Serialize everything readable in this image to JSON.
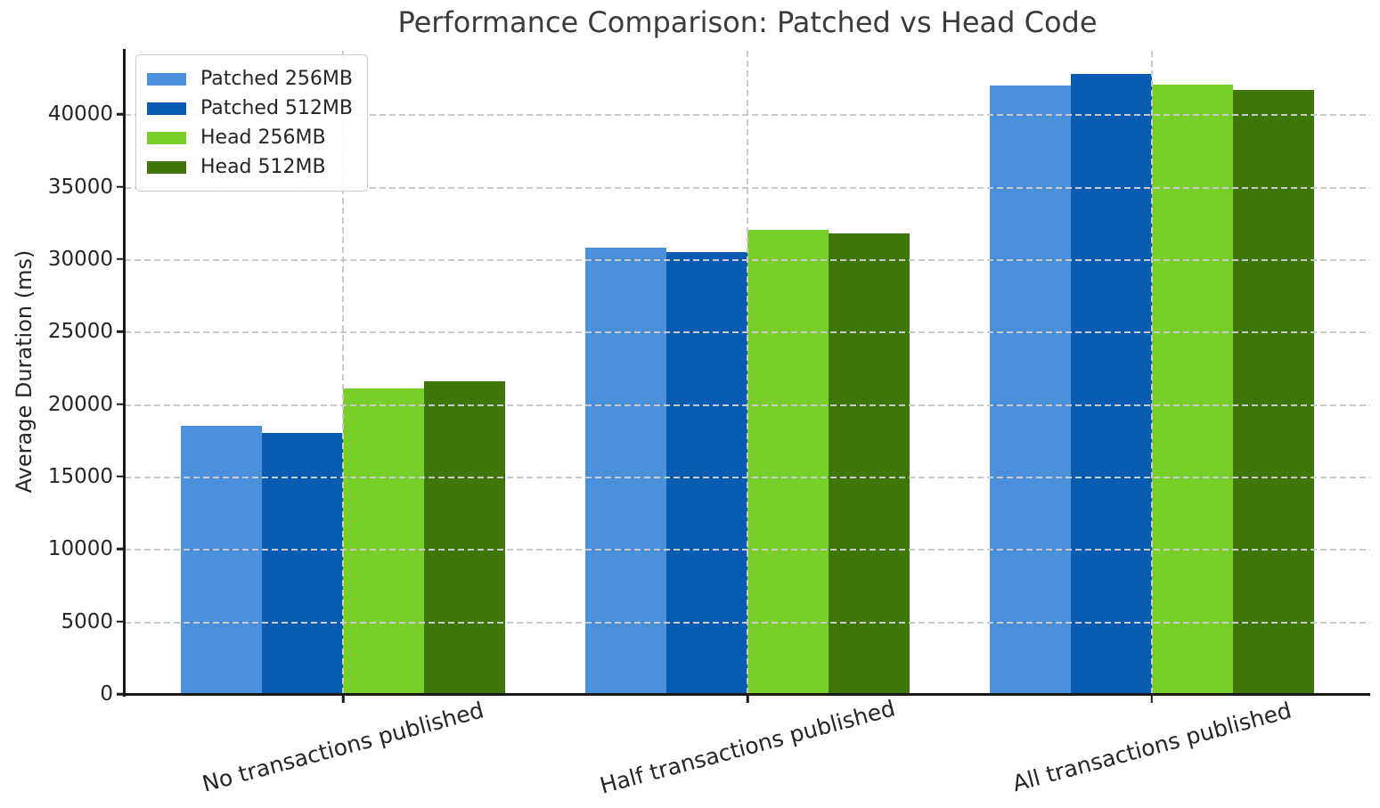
{
  "figure": {
    "background": "#ffffff",
    "text_color": "#262626",
    "axis_color": "#1a1a1a",
    "grid_color": "#c9c9c9"
  },
  "chart_data": {
    "type": "bar",
    "title": "Performance Comparison: Patched vs Head Code",
    "xlabel": "",
    "ylabel": "Average Duration (ms)",
    "categories": [
      "No transactions published",
      "Half transactions published",
      "All transactions published"
    ],
    "series": [
      {
        "name": "Patched 256MB",
        "color": "#4A90DB",
        "values": [
          18500,
          30800,
          42000
        ]
      },
      {
        "name": "Patched 512MB",
        "color": "#075BB1",
        "values": [
          18000,
          30500,
          42800
        ]
      },
      {
        "name": "Head 256MB",
        "color": "#77CF28",
        "values": [
          21100,
          32000,
          42050
        ]
      },
      {
        "name": "Head 512MB",
        "color": "#3E760A",
        "values": [
          21600,
          31800,
          41700
        ]
      }
    ],
    "yticks": [
      0,
      5000,
      10000,
      15000,
      20000,
      25000,
      30000,
      35000,
      40000
    ],
    "ylim": [
      0,
      44500
    ],
    "grid": "both, dashed, drawn above bars",
    "legend_position": "upper-left",
    "xtick_rotation_deg": 15
  }
}
